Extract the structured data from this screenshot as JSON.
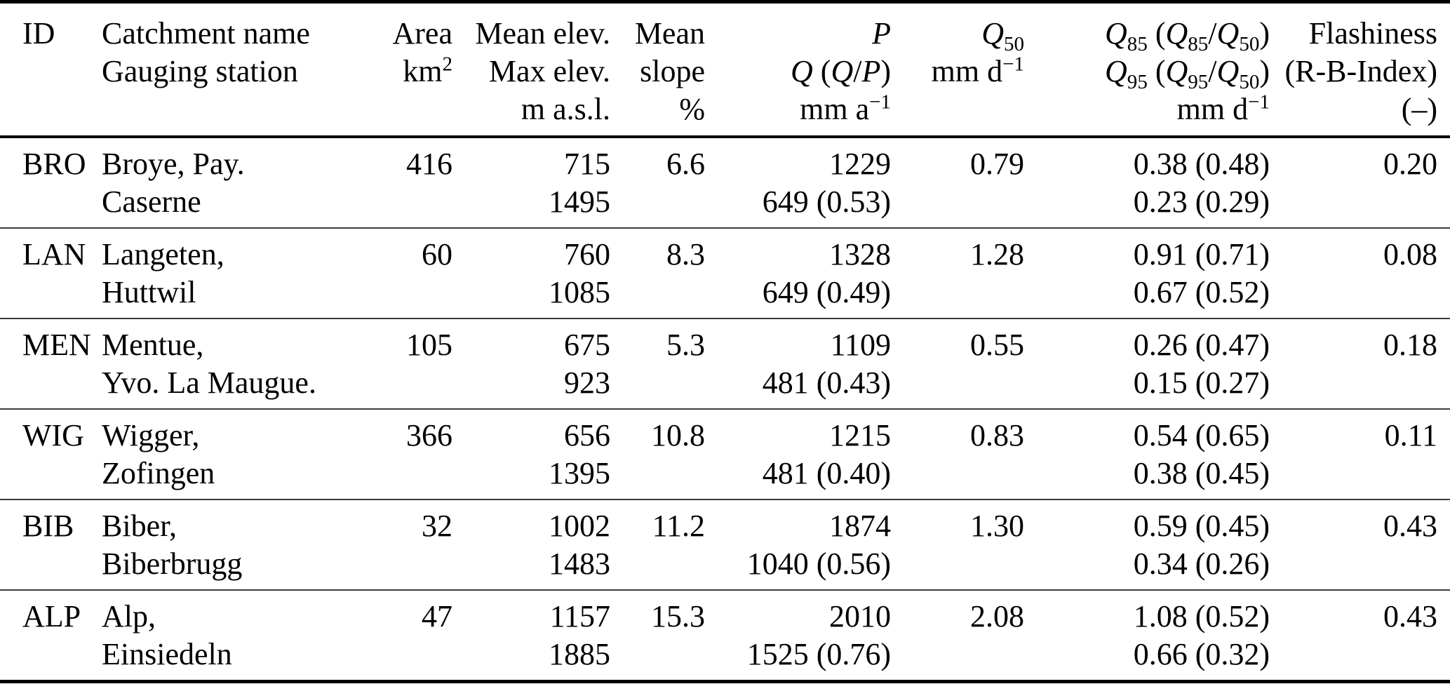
{
  "table": {
    "headers": {
      "id": [
        "ID",
        "",
        ""
      ],
      "catchment": [
        "Catchment name",
        "Gauging station",
        ""
      ],
      "area": [
        "Area",
        "km^{2}",
        ""
      ],
      "elev": [
        "Mean elev.",
        "Max elev.",
        "m a.s.l."
      ],
      "slope": [
        "Mean",
        "slope",
        "%"
      ],
      "pq": [
        "*P*",
        "*Q* (*Q*/*P*)",
        "mm a^{−1}"
      ],
      "q50": [
        "*Q*_{50}",
        "mm d^{−1}",
        ""
      ],
      "q85": [
        "*Q*_{85} (*Q*_{85}/*Q*_{50})",
        "*Q*_{95} (*Q*_{95}/*Q*_{50})",
        "mm d^{−1}"
      ],
      "flashiness": [
        "Flashiness",
        "(R-B-Index)",
        "(–)"
      ]
    },
    "rows": [
      {
        "id": "BRO",
        "name": [
          "Broye, Pay.",
          "Caserne"
        ],
        "area": "416",
        "elev": [
          "715",
          "1495"
        ],
        "slope": "6.6",
        "pq": [
          "1229",
          "649 (0.53)"
        ],
        "q50": "0.79",
        "q85": [
          "0.38 (0.48)",
          "0.23 (0.29)"
        ],
        "flashiness": "0.20"
      },
      {
        "id": "LAN",
        "name": [
          "Langeten,",
          "Huttwil"
        ],
        "area": "60",
        "elev": [
          "760",
          "1085"
        ],
        "slope": "8.3",
        "pq": [
          "1328",
          "649 (0.49)"
        ],
        "q50": "1.28",
        "q85": [
          "0.91 (0.71)",
          "0.67 (0.52)"
        ],
        "flashiness": "0.08"
      },
      {
        "id": "MEN",
        "name": [
          "Mentue,",
          "Yvo. La Maugue."
        ],
        "area": "105",
        "elev": [
          "675",
          "923"
        ],
        "slope": "5.3",
        "pq": [
          "1109",
          "481 (0.43)"
        ],
        "q50": "0.55",
        "q85": [
          "0.26 (0.47)",
          "0.15 (0.27)"
        ],
        "flashiness": "0.18"
      },
      {
        "id": "WIG",
        "name": [
          "Wigger,",
          "Zofingen"
        ],
        "area": "366",
        "elev": [
          "656",
          "1395"
        ],
        "slope": "10.8",
        "pq": [
          "1215",
          "481 (0.40)"
        ],
        "q50": "0.83",
        "q85": [
          "0.54 (0.65)",
          "0.38 (0.45)"
        ],
        "flashiness": "0.11"
      },
      {
        "id": "BIB",
        "name": [
          "Biber,",
          "Biberbrugg"
        ],
        "area": "32",
        "elev": [
          "1002",
          "1483"
        ],
        "slope": "11.2",
        "pq": [
          "1874",
          "1040 (0.56)"
        ],
        "q50": "1.30",
        "q85": [
          "0.59 (0.45)",
          "0.34 (0.26)"
        ],
        "flashiness": "0.43"
      },
      {
        "id": "ALP",
        "name": [
          "Alp,",
          "Einsiedeln"
        ],
        "area": "47",
        "elev": [
          "1157",
          "1885"
        ],
        "slope": "15.3",
        "pq": [
          "2010",
          "1525 (0.76)"
        ],
        "q50": "2.08",
        "q85": [
          "1.08 (0.52)",
          "0.66 (0.32)"
        ],
        "flashiness": "0.43"
      }
    ]
  }
}
